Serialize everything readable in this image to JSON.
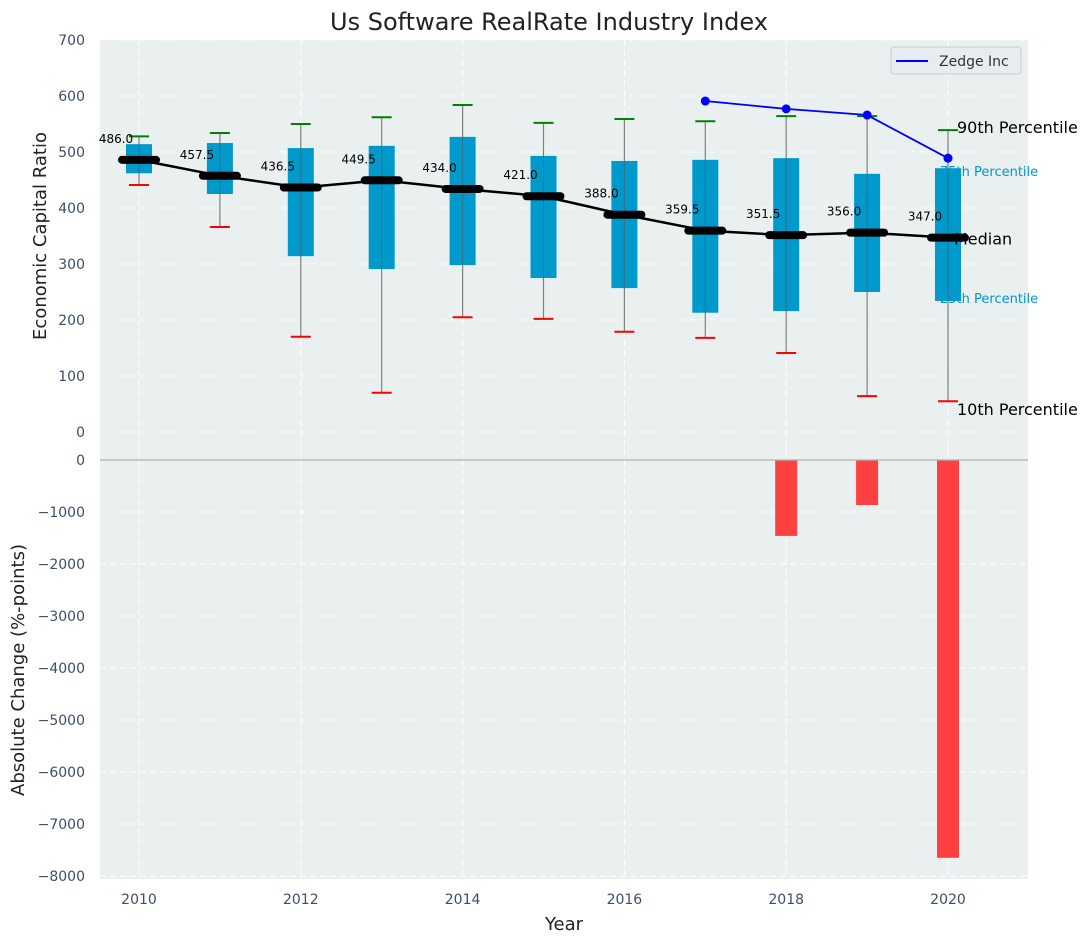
{
  "chart_data": [
    {
      "type": "box",
      "title": "Us Software RealRate Industry Index",
      "xlabel": "",
      "ylabel": "Economic Capital Ratio",
      "ylim": [
        0,
        700
      ],
      "yticks": [
        0,
        100,
        200,
        300,
        400,
        500,
        600,
        700
      ],
      "grid": true,
      "categories": [
        2010,
        2011,
        2012,
        2013,
        2014,
        2015,
        2016,
        2017,
        2018,
        2019,
        2020
      ],
      "series": [
        {
          "name": "90th Percentile",
          "values": [
            528,
            534,
            550,
            562,
            584,
            552,
            559,
            555,
            564,
            564,
            539
          ]
        },
        {
          "name": "75th Percentile",
          "values": [
            514,
            516,
            507,
            511,
            527,
            493,
            484,
            486,
            489,
            461,
            471
          ]
        },
        {
          "name": "Median",
          "values": [
            486.0,
            457.5,
            436.5,
            449.5,
            434.0,
            421.0,
            388.0,
            359.5,
            351.5,
            356.0,
            347.0
          ]
        },
        {
          "name": "25th Percentile",
          "values": [
            462,
            425,
            314,
            291,
            298,
            275,
            257,
            213,
            216,
            250,
            234
          ]
        },
        {
          "name": "10th Percentile",
          "values": [
            441,
            366,
            170,
            70,
            205,
            202,
            179,
            168,
            141,
            64,
            55
          ]
        }
      ],
      "median_labels": [
        "486.0",
        "457.5",
        "436.5",
        "449.5",
        "434.0",
        "421.0",
        "388.0",
        "359.5",
        "351.5",
        "356.0",
        "347.0"
      ],
      "company": {
        "name": "Zedge Inc",
        "x": [
          2017,
          2018,
          2019,
          2020
        ],
        "values": [
          591,
          577,
          566,
          489
        ]
      },
      "legend": {
        "entries": [
          "Zedge Inc"
        ],
        "placement": "top-right"
      },
      "annotations": [
        "90th Percentile",
        "75th Percentile",
        "Median",
        "25th Percentile",
        "10th Percentile"
      ],
      "colors": {
        "box": "#0099cc",
        "median": "#000000",
        "upper_whisker": "#008000",
        "lower_whisker": "#ff0000",
        "company": "#0000ff",
        "panel_bg": "#eaeff0"
      }
    },
    {
      "type": "bar",
      "xlabel": "Year",
      "ylabel": "Absolute Change (%-points)",
      "ylim": [
        -8000,
        0
      ],
      "yticks": [
        0,
        -1000,
        -2000,
        -3000,
        -4000,
        -5000,
        -6000,
        -7000,
        -8000
      ],
      "xticks": [
        2010,
        2012,
        2014,
        2016,
        2018,
        2020
      ],
      "xlim": [
        2009.5,
        2021
      ],
      "grid": true,
      "categories": [
        2018,
        2019,
        2020
      ],
      "values": [
        -1460,
        -865,
        -7650
      ],
      "colors": {
        "bar": "#ff4040"
      }
    }
  ]
}
